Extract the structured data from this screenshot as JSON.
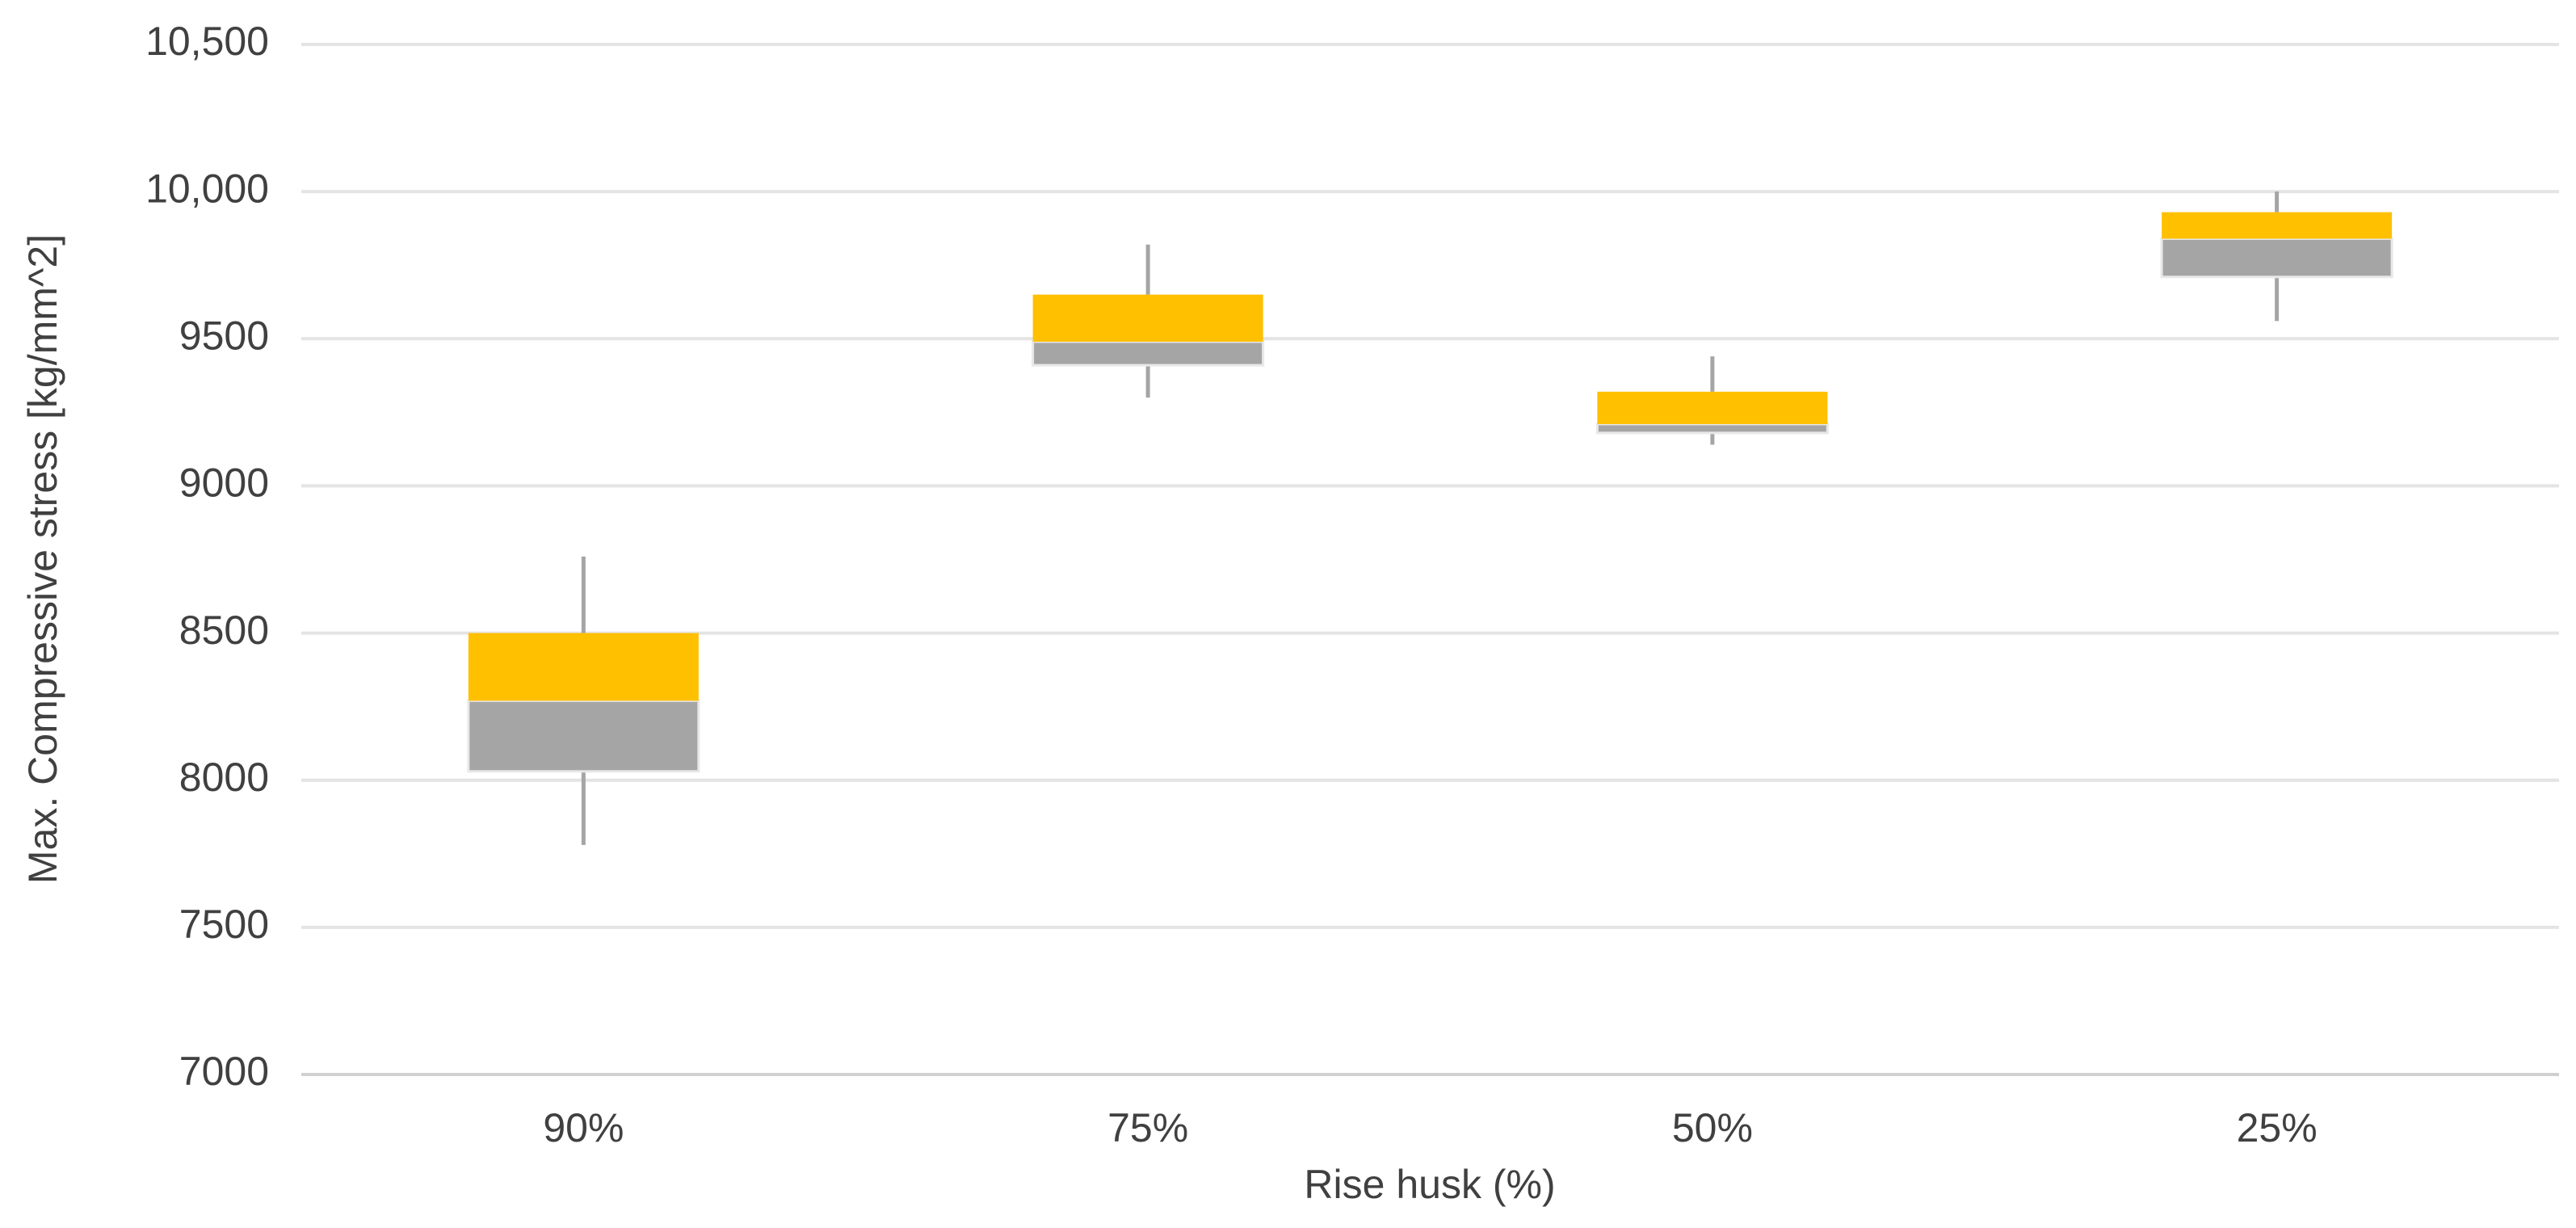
{
  "chart_data": {
    "type": "box",
    "y_label": "Max. Compressive stress [kg/mm^2]",
    "x_label": "Rise husk (%)",
    "categories": [
      "90%",
      "75%",
      "50%",
      "25%"
    ],
    "min": [
      7780,
      9300,
      9140,
      9560
    ],
    "q1": [
      8030,
      9410,
      9180,
      9710
    ],
    "median": [
      8270,
      9490,
      9210,
      9840
    ],
    "q3": [
      8500,
      9650,
      9320,
      9930
    ],
    "max": [
      8760,
      9820,
      9440,
      10000
    ],
    "lower_box_color": "#a5a5a5",
    "upper_box_color": "#ffc000",
    "whisker_color": "#a5a5a5",
    "ylim": [
      7000,
      10500
    ],
    "yticks": [
      7000,
      7500,
      8000,
      8500,
      9000,
      9500,
      {
        "value": 10000,
        "label": "10,000"
      },
      {
        "value": 10500,
        "label": "10,500"
      }
    ],
    "grid": true
  }
}
